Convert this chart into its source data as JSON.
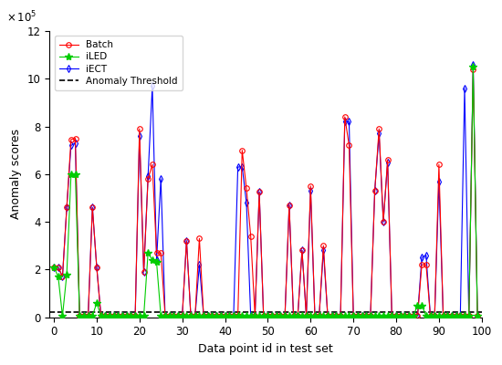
{
  "title": "",
  "xlabel": "Data point id in test set",
  "ylabel": "Anomaly scores",
  "xlim": [
    -1,
    100
  ],
  "ylim": [
    0,
    1200000
  ],
  "threshold": 20000,
  "batch_color": "#ff0000",
  "iled_color": "#00cc00",
  "iect_color": "#0000ff",
  "threshold_color": "#000000",
  "batch_marker": "o",
  "iled_marker": "*",
  "iect_marker": "d",
  "legend_labels": [
    "Batch",
    "iLED",
    "iECT",
    "Anomaly Threshold"
  ],
  "x": [
    0,
    1,
    2,
    3,
    4,
    5,
    6,
    7,
    8,
    9,
    10,
    11,
    12,
    13,
    14,
    15,
    16,
    17,
    18,
    19,
    20,
    21,
    22,
    23,
    24,
    25,
    26,
    27,
    28,
    29,
    30,
    31,
    32,
    33,
    34,
    35,
    36,
    37,
    38,
    39,
    40,
    41,
    42,
    43,
    44,
    45,
    46,
    47,
    48,
    49,
    50,
    51,
    52,
    53,
    54,
    55,
    56,
    57,
    58,
    59,
    60,
    61,
    62,
    63,
    64,
    65,
    66,
    67,
    68,
    69,
    70,
    71,
    72,
    73,
    74,
    75,
    76,
    77,
    78,
    79,
    80,
    81,
    82,
    83,
    84,
    85,
    86,
    87,
    88,
    89,
    90,
    91,
    92,
    93,
    94,
    95,
    96,
    97,
    98,
    99
  ],
  "batch": [
    210000,
    210000,
    170000,
    460000,
    745000,
    750000,
    5000,
    5000,
    5000,
    460000,
    210000,
    5000,
    5000,
    5000,
    5000,
    5000,
    5000,
    5000,
    5000,
    5000,
    790000,
    190000,
    580000,
    640000,
    270000,
    270000,
    5000,
    5000,
    5000,
    5000,
    5000,
    320000,
    5000,
    5000,
    330000,
    5000,
    5000,
    5000,
    5000,
    5000,
    5000,
    5000,
    5000,
    5000,
    700000,
    540000,
    340000,
    5000,
    525000,
    5000,
    5000,
    5000,
    5000,
    5000,
    5000,
    470000,
    5000,
    5000,
    280000,
    5000,
    550000,
    5000,
    5000,
    300000,
    5000,
    5000,
    5000,
    5000,
    840000,
    720000,
    5000,
    5000,
    5000,
    5000,
    5000,
    530000,
    790000,
    400000,
    660000,
    5000,
    5000,
    5000,
    5000,
    5000,
    5000,
    5000,
    220000,
    220000,
    5000,
    5000,
    640000,
    5000,
    5000,
    5000,
    5000,
    5000,
    5000,
    5000,
    1040000,
    5000
  ],
  "iled": [
    210000,
    170000,
    5000,
    180000,
    600000,
    600000,
    5000,
    5000,
    5000,
    5000,
    60000,
    5000,
    5000,
    5000,
    5000,
    5000,
    5000,
    5000,
    5000,
    5000,
    5000,
    5000,
    270000,
    240000,
    230000,
    5000,
    5000,
    5000,
    5000,
    5000,
    5000,
    5000,
    5000,
    5000,
    5000,
    5000,
    5000,
    5000,
    5000,
    5000,
    5000,
    5000,
    5000,
    5000,
    5000,
    5000,
    5000,
    5000,
    5000,
    5000,
    5000,
    5000,
    5000,
    5000,
    5000,
    5000,
    5000,
    5000,
    5000,
    5000,
    5000,
    5000,
    5000,
    5000,
    5000,
    5000,
    5000,
    5000,
    5000,
    5000,
    5000,
    5000,
    5000,
    5000,
    5000,
    5000,
    5000,
    5000,
    5000,
    5000,
    5000,
    5000,
    5000,
    5000,
    5000,
    50000,
    50000,
    5000,
    5000,
    5000,
    5000,
    5000,
    5000,
    5000,
    5000,
    5000,
    5000,
    5000,
    1050000,
    5000
  ],
  "iect": [
    210000,
    210000,
    170000,
    460000,
    720000,
    730000,
    5000,
    5000,
    5000,
    460000,
    210000,
    5000,
    5000,
    5000,
    5000,
    5000,
    5000,
    5000,
    5000,
    5000,
    760000,
    190000,
    590000,
    970000,
    240000,
    580000,
    5000,
    5000,
    5000,
    5000,
    5000,
    320000,
    5000,
    5000,
    220000,
    5000,
    5000,
    5000,
    5000,
    5000,
    5000,
    5000,
    5000,
    630000,
    630000,
    480000,
    5000,
    5000,
    525000,
    5000,
    5000,
    5000,
    5000,
    5000,
    5000,
    470000,
    5000,
    5000,
    280000,
    5000,
    530000,
    5000,
    5000,
    280000,
    5000,
    5000,
    5000,
    5000,
    820000,
    820000,
    5000,
    5000,
    5000,
    5000,
    5000,
    530000,
    770000,
    400000,
    650000,
    5000,
    5000,
    5000,
    5000,
    5000,
    5000,
    5000,
    250000,
    260000,
    5000,
    5000,
    570000,
    5000,
    5000,
    5000,
    5000,
    5000,
    960000,
    5000,
    1060000,
    5000
  ]
}
